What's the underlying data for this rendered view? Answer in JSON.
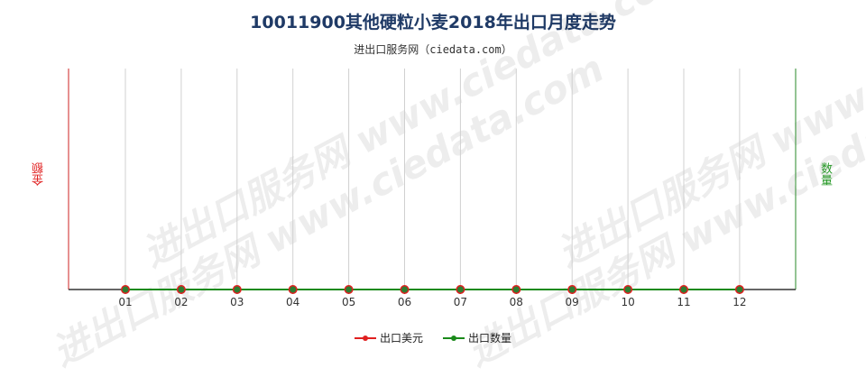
{
  "chart_data": {
    "type": "line",
    "title": "10011900其他硬粒小麦2018年出口月度走势",
    "subtitle": "进出口服务网（ciedata.com）",
    "categories": [
      "01",
      "02",
      "03",
      "04",
      "05",
      "06",
      "07",
      "08",
      "09",
      "10",
      "11",
      "12"
    ],
    "ylabel_left": "金额",
    "ylabel_right": "数量",
    "series": [
      {
        "name": "出口美元",
        "axis": "left",
        "color": "#e02020",
        "values": [
          0,
          0,
          0,
          0,
          0,
          0,
          0,
          0,
          0,
          0,
          0,
          0
        ]
      },
      {
        "name": "出口数量",
        "axis": "right",
        "color": "#1a8a1a",
        "values": [
          0,
          0,
          0,
          0,
          0,
          0,
          0,
          0,
          0,
          0,
          0,
          0
        ]
      }
    ],
    "grid": true,
    "legend_position": "bottom"
  },
  "watermark": "进出口服务网 www.ciedata.com",
  "colors": {
    "left_axis": "#cc2222",
    "right_axis": "#2a8a2a",
    "marker_fill": "#2e7d32",
    "grid": "#d0d0d0"
  }
}
